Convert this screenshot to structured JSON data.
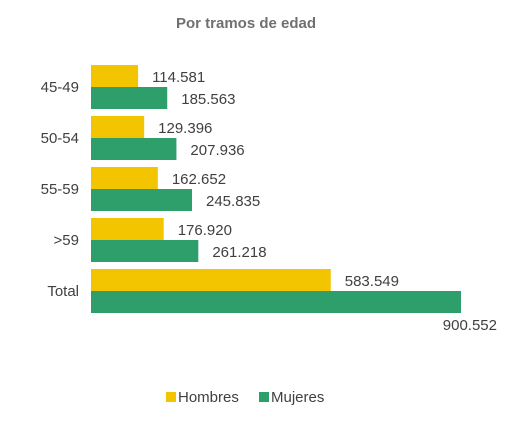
{
  "chart_data": {
    "type": "bar",
    "orientation": "horizontal",
    "title": "Por tramos de edad",
    "categories": [
      "45-49",
      "50-54",
      "55-59",
      ">59",
      "Total"
    ],
    "series": [
      {
        "name": "Hombres",
        "values": [
          114581,
          129396,
          162652,
          176920,
          583549
        ],
        "labels": [
          "114.581",
          "129.396",
          "162.652",
          "176.920",
          "583.549"
        ],
        "color": "#F2C500"
      },
      {
        "name": "Mujeres",
        "values": [
          185563,
          207936,
          245835,
          261218,
          900552
        ],
        "labels": [
          "185.563",
          "207.936",
          "245.835",
          "261.218",
          "900.552"
        ],
        "color": "#2E9E6B"
      }
    ],
    "xlim": [
      0,
      900552
    ],
    "grid": false,
    "legend_position": "bottom"
  }
}
